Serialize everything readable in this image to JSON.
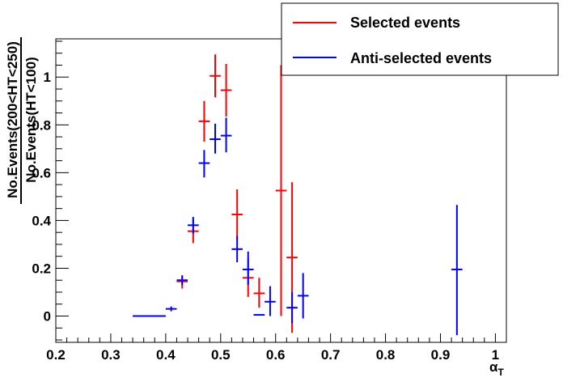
{
  "chart_data": {
    "type": "scatter",
    "title": "",
    "xlabel": "α",
    "xlabel_subscript": "T",
    "ylabel_numerator": "No.Events(200<HT<250)",
    "ylabel_denominator": "No.Events(HT<100)",
    "xlim": [
      0.2,
      1.02
    ],
    "ylim": [
      -0.11,
      1.16
    ],
    "x_ticks": [
      0.2,
      0.3,
      0.4,
      0.5,
      0.6,
      0.7,
      0.8,
      0.9,
      1
    ],
    "x_tick_labels": [
      "0.2",
      "0.3",
      "0.4",
      "0.5",
      "0.6",
      "0.7",
      "0.8",
      "0.9",
      "1"
    ],
    "y_ticks": [
      0,
      0.2,
      0.4,
      0.6,
      0.8,
      1
    ],
    "y_tick_labels": [
      "0",
      "0.2",
      "0.4",
      "0.6",
      "0.8",
      "1"
    ],
    "grid": false,
    "legend_position": "top-right",
    "series": [
      {
        "name": "Selected events",
        "color": "#ff0000",
        "points": [
          {
            "x": 0.43,
            "y": 0.145,
            "xerr": 0.01,
            "ylo": 0.115,
            "yhi": 0.17
          },
          {
            "x": 0.45,
            "y": 0.355,
            "xerr": 0.01,
            "ylo": 0.305,
            "yhi": 0.405
          },
          {
            "x": 0.47,
            "y": 0.815,
            "xerr": 0.01,
            "ylo": 0.73,
            "yhi": 0.9
          },
          {
            "x": 0.49,
            "y": 1.005,
            "xerr": 0.01,
            "ylo": 0.915,
            "yhi": 1.095
          },
          {
            "x": 0.51,
            "y": 0.945,
            "xerr": 0.01,
            "ylo": 0.835,
            "yhi": 1.055
          },
          {
            "x": 0.53,
            "y": 0.425,
            "xerr": 0.01,
            "ylo": 0.32,
            "yhi": 0.53
          },
          {
            "x": 0.55,
            "y": 0.16,
            "xerr": 0.01,
            "ylo": 0.08,
            "yhi": 0.24
          },
          {
            "x": 0.57,
            "y": 0.095,
            "xerr": 0.01,
            "ylo": 0.035,
            "yhi": 0.16
          },
          {
            "x": 0.61,
            "y": 0.525,
            "xerr": 0.01,
            "ylo": 0.0,
            "yhi": 1.05
          },
          {
            "x": 0.63,
            "y": 0.245,
            "xerr": 0.01,
            "ylo": -0.07,
            "yhi": 0.56
          }
        ]
      },
      {
        "name": "Anti-selected events",
        "color": "#0000ff",
        "points": [
          {
            "x": 0.37,
            "y": 0.0,
            "xerr": 0.03,
            "ylo": 0.0,
            "yhi": 0.0
          },
          {
            "x": 0.41,
            "y": 0.03,
            "xerr": 0.01,
            "ylo": 0.02,
            "yhi": 0.04
          },
          {
            "x": 0.43,
            "y": 0.15,
            "xerr": 0.01,
            "ylo": 0.13,
            "yhi": 0.17
          },
          {
            "x": 0.45,
            "y": 0.38,
            "xerr": 0.01,
            "ylo": 0.345,
            "yhi": 0.415
          },
          {
            "x": 0.47,
            "y": 0.64,
            "xerr": 0.01,
            "ylo": 0.58,
            "yhi": 0.695
          },
          {
            "x": 0.49,
            "y": 0.74,
            "xerr": 0.01,
            "ylo": 0.68,
            "yhi": 0.805
          },
          {
            "x": 0.51,
            "y": 0.755,
            "xerr": 0.01,
            "ylo": 0.685,
            "yhi": 0.83
          },
          {
            "x": 0.53,
            "y": 0.28,
            "xerr": 0.01,
            "ylo": 0.225,
            "yhi": 0.335
          },
          {
            "x": 0.55,
            "y": 0.195,
            "xerr": 0.01,
            "ylo": 0.13,
            "yhi": 0.27
          },
          {
            "x": 0.57,
            "y": 0.005,
            "xerr": 0.01,
            "ylo": 0.005,
            "yhi": 0.005
          },
          {
            "x": 0.59,
            "y": 0.06,
            "xerr": 0.01,
            "ylo": 0.0,
            "yhi": 0.125
          },
          {
            "x": 0.63,
            "y": 0.035,
            "xerr": 0.01,
            "ylo": -0.03,
            "yhi": 0.1
          },
          {
            "x": 0.65,
            "y": 0.085,
            "xerr": 0.01,
            "ylo": -0.01,
            "yhi": 0.18
          },
          {
            "x": 0.93,
            "y": 0.195,
            "xerr": 0.01,
            "ylo": -0.08,
            "yhi": 0.465
          }
        ]
      }
    ]
  }
}
